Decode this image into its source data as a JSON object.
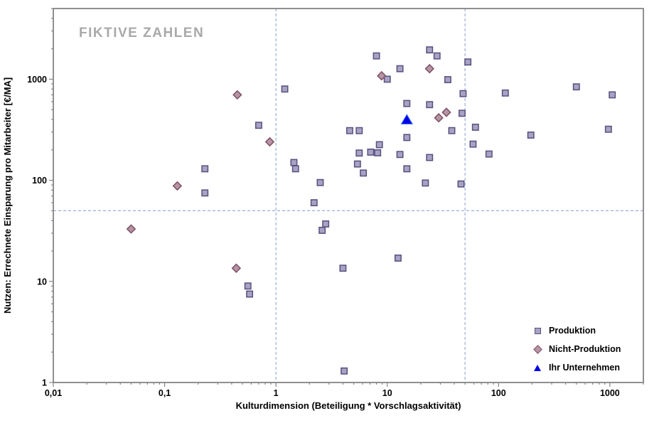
{
  "watermark": "FIKTIVE ZAHLEN",
  "colors": {
    "background": "#ffffff",
    "axis": "#848484",
    "text": "#000000",
    "watermark": "#a9a9a9",
    "reference_line": "#9badd6"
  },
  "chart_data": {
    "type": "scatter",
    "title": "",
    "xlabel": "Kulturdimension (Beteiligung * Vorschlagsaktivität)",
    "ylabel": "Nutzen: Errechnete Einsparung pro Mitarbeiter [€/MA]",
    "x_scale": "log",
    "y_scale": "log",
    "xlim": [
      0.01,
      2000
    ],
    "ylim": [
      1,
      5000
    ],
    "grid": false,
    "legend_position": "bottom-right",
    "x_ticks": [
      {
        "value": 0.01,
        "label": "0,01"
      },
      {
        "value": 0.1,
        "label": "0,1"
      },
      {
        "value": 1,
        "label": "1"
      },
      {
        "value": 10,
        "label": "10"
      },
      {
        "value": 100,
        "label": "100"
      },
      {
        "value": 1000,
        "label": "1000"
      }
    ],
    "y_ticks": [
      {
        "value": 1,
        "label": "1"
      },
      {
        "value": 10,
        "label": "10"
      },
      {
        "value": 100,
        "label": "100"
      },
      {
        "value": 1000,
        "label": "1000"
      }
    ],
    "reference_lines": {
      "vertical_x": [
        1,
        50
      ],
      "horizontal_y": [
        50
      ]
    },
    "series": [
      {
        "name": "Produktion",
        "marker": "square",
        "fill": "#a9a2c4",
        "stroke": "#56507e",
        "points": [
          [
            24,
            1950
          ],
          [
            8,
            1700
          ],
          [
            28,
            1700
          ],
          [
            53,
            1480
          ],
          [
            13,
            1270
          ],
          [
            10,
            1000
          ],
          [
            35,
            990
          ],
          [
            500,
            840
          ],
          [
            1.2,
            800
          ],
          [
            115,
            730
          ],
          [
            48,
            720
          ],
          [
            1050,
            700
          ],
          [
            15,
            575
          ],
          [
            24,
            560
          ],
          [
            47,
            460
          ],
          [
            0.7,
            350
          ],
          [
            62,
            335
          ],
          [
            970,
            320
          ],
          [
            38,
            310
          ],
          [
            4.6,
            310
          ],
          [
            5.6,
            310
          ],
          [
            195,
            280
          ],
          [
            15,
            265
          ],
          [
            59,
            228
          ],
          [
            8.5,
            225
          ],
          [
            7.1,
            190
          ],
          [
            8.2,
            187
          ],
          [
            5.6,
            186
          ],
          [
            82,
            182
          ],
          [
            13,
            180
          ],
          [
            24,
            168
          ],
          [
            1.45,
            150
          ],
          [
            5.4,
            145
          ],
          [
            1.5,
            130
          ],
          [
            15,
            130
          ],
          [
            0.23,
            130
          ],
          [
            6.1,
            118
          ],
          [
            2.5,
            95
          ],
          [
            22,
            94
          ],
          [
            46,
            92
          ],
          [
            0.23,
            75
          ],
          [
            2.2,
            60
          ],
          [
            2.8,
            37
          ],
          [
            2.6,
            32
          ],
          [
            12.5,
            17
          ],
          [
            4,
            13.5
          ],
          [
            0.56,
            9
          ],
          [
            0.58,
            7.5
          ],
          [
            4.1,
            1.3
          ]
        ]
      },
      {
        "name": "Nicht-Produktion",
        "marker": "diamond",
        "fill": "#b794a5",
        "stroke": "#7d5064",
        "points": [
          [
            24,
            1270
          ],
          [
            8.9,
            1080
          ],
          [
            0.45,
            700
          ],
          [
            34,
            470
          ],
          [
            29,
            415
          ],
          [
            0.88,
            240
          ],
          [
            0.13,
            88
          ],
          [
            0.05,
            33
          ],
          [
            0.44,
            13.5
          ]
        ]
      },
      {
        "name": "Ihr Unternehmen",
        "marker": "triangle",
        "fill": "#0000e8",
        "stroke": "#4f86f0",
        "points": [
          [
            15,
            400
          ]
        ]
      }
    ]
  }
}
